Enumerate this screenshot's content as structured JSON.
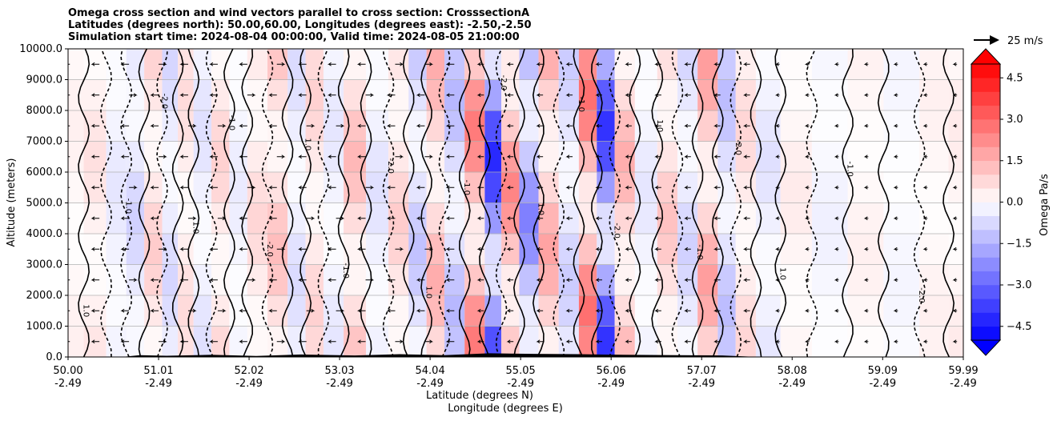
{
  "chart_data": {
    "type": "heatmap",
    "title_lines": [
      "Omega cross section and wind vectors parallel to cross section: CrosssectionA",
      "Latitudes (degrees north): 50.00,60.00, Longitudes (degrees east): -2.50,-2.50",
      "Simulation start time: 2024-08-04 00:00:00, Valid time: 2024-08-05 21:00:00"
    ],
    "ylabel": "Altitude (meters)",
    "xlabel_lines": [
      "Latitude (degrees N)",
      "Longitude (degrees E)"
    ],
    "ylim": [
      0,
      10000
    ],
    "y_ticks": [
      "0.0",
      "1000.0",
      "2000.0",
      "3000.0",
      "4000.0",
      "5000.0",
      "6000.0",
      "7000.0",
      "8000.0",
      "9000.0",
      "10000.0"
    ],
    "x_tick_values": [
      50.0,
      51.01,
      52.02,
      53.03,
      54.04,
      55.05,
      56.06,
      57.07,
      58.08,
      59.09,
      59.99
    ],
    "x_tick_labels": [
      [
        "50.00",
        "-2.49"
      ],
      [
        "51.01",
        "-2.49"
      ],
      [
        "52.02",
        "-2.49"
      ],
      [
        "53.03",
        "-2.49"
      ],
      [
        "54.04",
        "-2.49"
      ],
      [
        "55.05",
        "-2.49"
      ],
      [
        "56.06",
        "-2.49"
      ],
      [
        "57.07",
        "-2.49"
      ],
      [
        "58.08",
        "-2.49"
      ],
      [
        "59.09",
        "-2.49"
      ],
      [
        "59.99",
        "-2.49"
      ]
    ],
    "grid": "horizontal",
    "colorbar": {
      "label": "Omega Pa/s",
      "range": [
        -5,
        5
      ],
      "extend": "both",
      "ticks": [
        "4.5",
        "3.0",
        "1.5",
        "0.0",
        "−1.5",
        "−3.0",
        "−4.5"
      ],
      "colormap": "bwr",
      "low_color": "#0000ff",
      "mid_color": "#ffffff",
      "high_color": "#ff0000"
    },
    "quiver_key": {
      "label": "25 m/s"
    },
    "contour_labels": [
      "1.0",
      "0.0",
      "-1.0",
      "2.0",
      "-2.0",
      "0.1"
    ],
    "omega_columns": [
      {
        "x": 50.05,
        "v": 0.3
      },
      {
        "x": 50.3,
        "v": 0.6
      },
      {
        "x": 50.55,
        "v": -0.5
      },
      {
        "x": 50.75,
        "v": -0.9
      },
      {
        "x": 50.95,
        "v": 1.0
      },
      {
        "x": 51.15,
        "v": -0.8
      },
      {
        "x": 51.3,
        "v": 0.7
      },
      {
        "x": 51.5,
        "v": -0.6
      },
      {
        "x": 51.7,
        "v": 0.9
      },
      {
        "x": 51.9,
        "v": -0.4
      },
      {
        "x": 52.1,
        "v": 0.8
      },
      {
        "x": 52.35,
        "v": 1.3
      },
      {
        "x": 52.55,
        "v": -0.7
      },
      {
        "x": 52.75,
        "v": 0.9
      },
      {
        "x": 52.95,
        "v": -0.5
      },
      {
        "x": 53.2,
        "v": 1.4
      },
      {
        "x": 53.45,
        "v": -0.6
      },
      {
        "x": 53.7,
        "v": 1.0
      },
      {
        "x": 53.9,
        "v": -1.2
      },
      {
        "x": 54.1,
        "v": 1.6
      },
      {
        "x": 54.3,
        "v": -1.4
      },
      {
        "x": 54.55,
        "v": 2.6
      },
      {
        "x": 54.75,
        "v": -4.2
      },
      {
        "x": 54.92,
        "v": 2.4
      },
      {
        "x": 55.15,
        "v": -2.5
      },
      {
        "x": 55.35,
        "v": 1.8
      },
      {
        "x": 55.6,
        "v": -1.0
      },
      {
        "x": 55.8,
        "v": 2.8
      },
      {
        "x": 56.0,
        "v": -4.0
      },
      {
        "x": 56.2,
        "v": 1.6
      },
      {
        "x": 56.45,
        "v": -0.5
      },
      {
        "x": 56.7,
        "v": 1.2
      },
      {
        "x": 56.9,
        "v": -0.9
      },
      {
        "x": 57.15,
        "v": 1.9
      },
      {
        "x": 57.35,
        "v": -1.3
      },
      {
        "x": 57.55,
        "v": 0.8
      },
      {
        "x": 57.8,
        "v": -0.6
      },
      {
        "x": 58.1,
        "v": 0.4
      },
      {
        "x": 58.5,
        "v": -0.3
      },
      {
        "x": 58.9,
        "v": 0.3
      },
      {
        "x": 59.3,
        "v": -0.2
      },
      {
        "x": 59.7,
        "v": 0.3
      },
      {
        "x": 59.95,
        "v": 0.4
      }
    ],
    "terrain": [
      {
        "x": 50.0,
        "h": 0
      },
      {
        "x": 50.6,
        "h": 0
      },
      {
        "x": 50.8,
        "h": 60
      },
      {
        "x": 51.1,
        "h": 40
      },
      {
        "x": 51.6,
        "h": 70
      },
      {
        "x": 52.1,
        "h": 30
      },
      {
        "x": 52.6,
        "h": 80
      },
      {
        "x": 53.2,
        "h": 50
      },
      {
        "x": 53.7,
        "h": 90
      },
      {
        "x": 54.2,
        "h": 60
      },
      {
        "x": 54.7,
        "h": 120
      },
      {
        "x": 55.2,
        "h": 100
      },
      {
        "x": 55.7,
        "h": 90
      },
      {
        "x": 56.2,
        "h": 70
      },
      {
        "x": 56.8,
        "h": 60
      },
      {
        "x": 57.3,
        "h": 50
      },
      {
        "x": 57.7,
        "h": 0
      },
      {
        "x": 59.99,
        "h": 0
      }
    ]
  }
}
